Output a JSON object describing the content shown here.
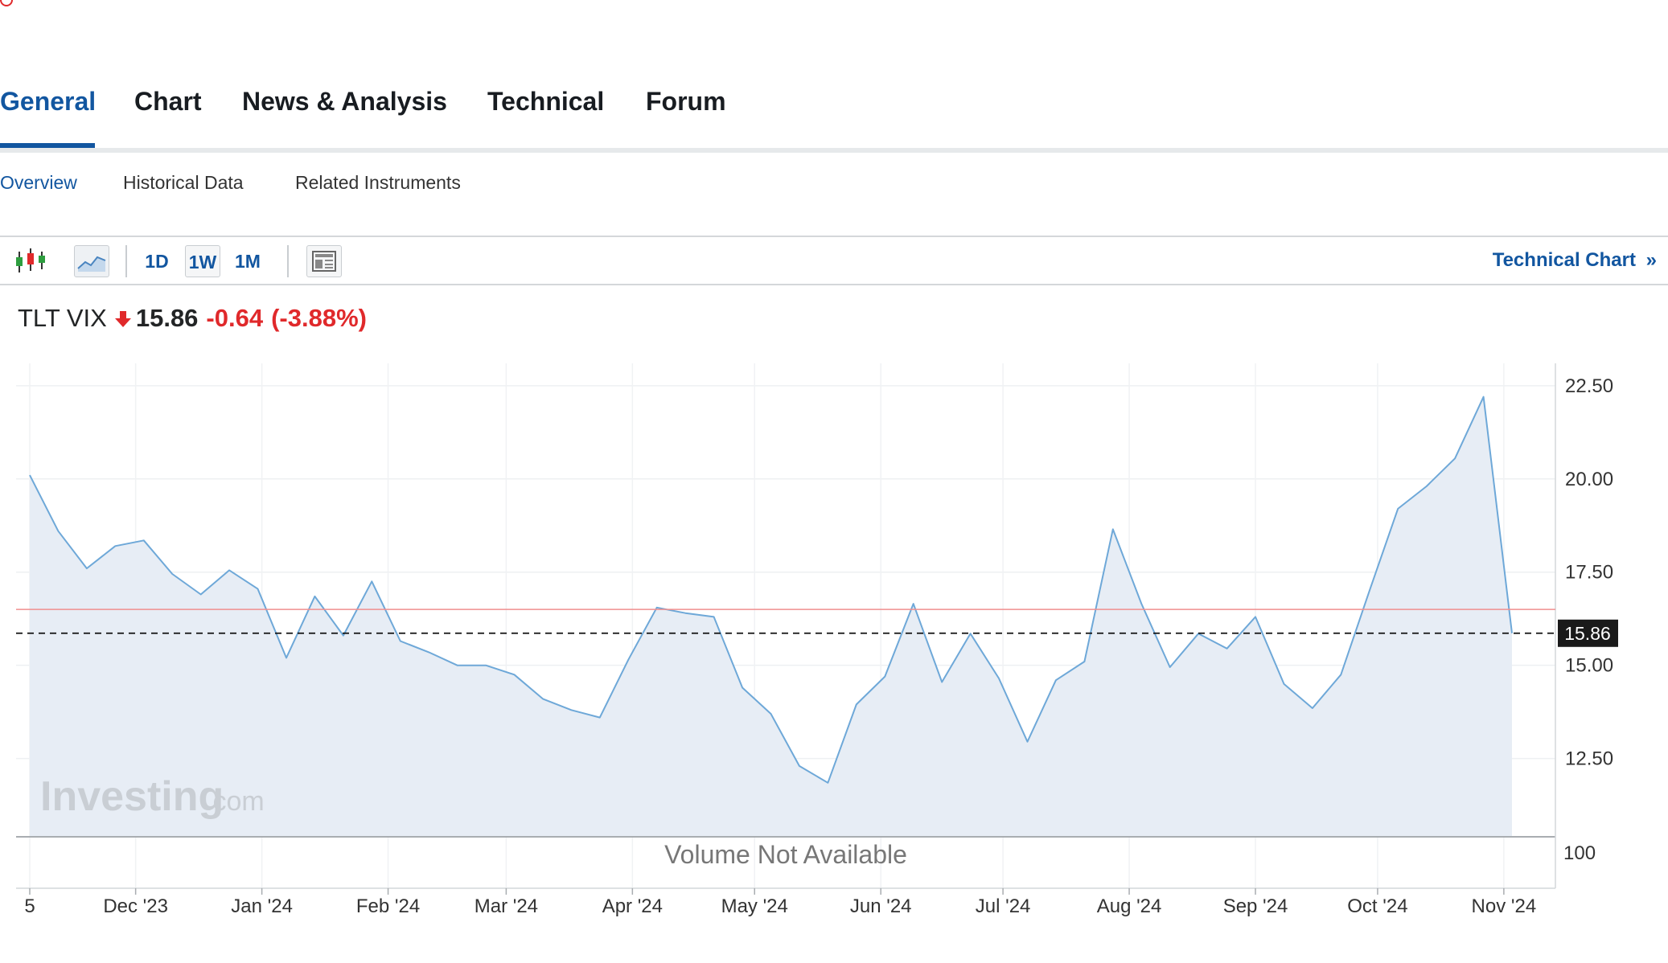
{
  "tabs": [
    "General",
    "Chart",
    "News & Analysis",
    "Technical",
    "Forum"
  ],
  "subtabs": [
    "Overview",
    "Historical Data",
    "Related Instruments"
  ],
  "toolbar": {
    "periods": [
      "1D",
      "1W",
      "1M"
    ],
    "selected_period": "1W",
    "technical_chart_label": "Technical Chart",
    "technical_chart_chevron": "»",
    "icons": [
      "candlestick-icon",
      "area-chart-icon",
      "layout-icon"
    ]
  },
  "quote": {
    "symbol": "TLT VIX",
    "last": "15.86",
    "change": "-0.64",
    "change_pct": "(-3.88%)",
    "direction": "down"
  },
  "watermark": {
    "brand": "Investing",
    "suffix": ".com"
  },
  "volume_text": "Volume Not Available",
  "volume_axis_label": "100",
  "colors": {
    "accent": "#1256a0",
    "negative": "#e0292b",
    "line": "#6ea8d8",
    "area": "#e7edf5",
    "prev_close_line": "#f08f8f"
  },
  "chart_data": {
    "type": "area",
    "x_tick_labels": [
      "5",
      "Dec '23",
      "Jan '24",
      "Feb '24",
      "Mar '24",
      "Apr '24",
      "May '24",
      "Jun '24",
      "Jul '24",
      "Aug '24",
      "Sep '24",
      "Oct '24",
      "Nov '24"
    ],
    "y_tick_labels": [
      "22.50",
      "20.00",
      "17.50",
      "15.00",
      "12.50"
    ],
    "ylim": [
      10.4,
      23.1
    ],
    "current_value": 15.86,
    "current_value_label": "15.86",
    "prev_close": 16.5,
    "grid": true,
    "series": [
      {
        "x": [
          "2023-11-05",
          "2023-11-12",
          "2023-11-19",
          "2023-11-26",
          "2023-12-03",
          "2023-12-10",
          "2023-12-17",
          "2023-12-24",
          "2023-12-31",
          "2024-01-07",
          "2024-01-14",
          "2024-01-21",
          "2024-01-28",
          "2024-02-04",
          "2024-02-11",
          "2024-02-18",
          "2024-02-25",
          "2024-03-03",
          "2024-03-10",
          "2024-03-17",
          "2024-03-24",
          "2024-03-31",
          "2024-04-07",
          "2024-04-14",
          "2024-04-21",
          "2024-04-28",
          "2024-05-05",
          "2024-05-12",
          "2024-05-19",
          "2024-05-26",
          "2024-06-02",
          "2024-06-09",
          "2024-06-16",
          "2024-06-23",
          "2024-06-30",
          "2024-07-07",
          "2024-07-14",
          "2024-07-21",
          "2024-07-28",
          "2024-08-04",
          "2024-08-11",
          "2024-08-18",
          "2024-08-25",
          "2024-09-01",
          "2024-09-08",
          "2024-09-15",
          "2024-09-22",
          "2024-09-29",
          "2024-10-06",
          "2024-10-13",
          "2024-10-20",
          "2024-10-27",
          "2024-11-03"
        ],
        "values": [
          20.1,
          18.6,
          17.6,
          18.2,
          18.35,
          17.45,
          16.9,
          17.55,
          17.05,
          15.2,
          16.85,
          15.8,
          17.25,
          15.65,
          15.35,
          15.0,
          15.0,
          14.75,
          14.1,
          13.8,
          13.6,
          15.15,
          16.55,
          16.4,
          16.3,
          14.4,
          13.7,
          12.3,
          11.85,
          13.95,
          14.7,
          16.65,
          14.55,
          15.85,
          14.65,
          12.95,
          14.6,
          15.1,
          18.65,
          16.65,
          14.95,
          15.85,
          15.45,
          16.3,
          14.5,
          13.85,
          14.75,
          17.0,
          19.2,
          19.8,
          20.55,
          22.2,
          15.86
        ]
      }
    ]
  }
}
